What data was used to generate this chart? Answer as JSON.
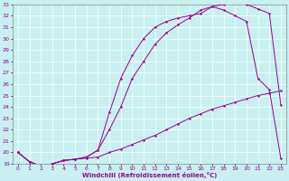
{
  "xlabel": "Windchill (Refroidissement éolien,°C)",
  "ylabel": "",
  "bg_color": "#c8f0f0",
  "line_color": "#990099",
  "grid_color": "#ffffff",
  "xlim": [
    -0.5,
    23.5
  ],
  "ylim": [
    19,
    33
  ],
  "yticks": [
    19,
    20,
    21,
    22,
    23,
    24,
    25,
    26,
    27,
    28,
    29,
    30,
    31,
    32,
    33
  ],
  "xticks": [
    0,
    1,
    2,
    3,
    4,
    5,
    6,
    7,
    8,
    9,
    10,
    11,
    12,
    13,
    14,
    15,
    16,
    17,
    18,
    19,
    20,
    21,
    22,
    23
  ],
  "curve1_x": [
    0,
    1,
    2,
    3,
    4,
    5,
    6,
    7,
    8,
    9,
    10,
    11,
    12,
    13,
    14,
    15,
    16,
    17,
    18,
    19,
    20,
    21,
    22,
    23
  ],
  "curve1_y": [
    20.0,
    19.2,
    18.8,
    19.0,
    19.3,
    19.4,
    19.5,
    19.6,
    20.0,
    20.3,
    20.7,
    21.1,
    21.5,
    22.0,
    22.5,
    23.0,
    23.4,
    23.8,
    24.1,
    24.4,
    24.7,
    25.0,
    25.2,
    25.4
  ],
  "curve2_x": [
    0,
    1,
    2,
    3,
    4,
    5,
    6,
    7,
    8,
    9,
    10,
    11,
    12,
    13,
    14,
    15,
    16,
    17,
    18,
    19,
    20,
    21,
    22,
    23
  ],
  "curve2_y": [
    20.0,
    19.2,
    18.8,
    19.0,
    19.3,
    19.4,
    19.6,
    20.2,
    23.5,
    26.5,
    28.5,
    30.0,
    31.0,
    31.5,
    31.8,
    32.0,
    32.2,
    32.8,
    33.0,
    33.2,
    33.0,
    32.6,
    32.2,
    24.2
  ],
  "curve3_x": [
    0,
    1,
    2,
    3,
    4,
    5,
    6,
    7,
    8,
    9,
    10,
    11,
    12,
    13,
    14,
    15,
    16,
    17,
    18,
    19,
    20,
    21,
    22,
    23
  ],
  "curve3_y": [
    20.0,
    19.2,
    18.8,
    19.0,
    19.3,
    19.4,
    19.6,
    20.2,
    22.0,
    24.0,
    26.5,
    28.0,
    29.5,
    30.5,
    31.2,
    31.8,
    32.5,
    32.8,
    32.5,
    32.0,
    31.5,
    26.5,
    25.5,
    19.5
  ]
}
